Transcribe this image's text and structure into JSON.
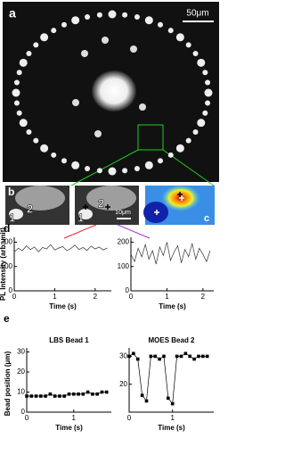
{
  "figure": {
    "panel_a": "a",
    "scale_a": "50μm",
    "panel_b": "b",
    "bead_1": "1",
    "bead_2": "2",
    "bead_1b": "1",
    "bead_2b": "2",
    "scale_b": "10μm",
    "panel_c": "c",
    "panel_d": "d",
    "panel_e": "e",
    "d_ylabel": "PL Intensity (arb.unit)",
    "e_ylabel": "Bead position (μm)"
  },
  "chart_data": [
    {
      "type": "line",
      "xlabel": "Time (s)",
      "color": "#333",
      "markers": false,
      "xlim": [
        0,
        2.4
      ],
      "ylim": [
        0,
        220
      ],
      "xticks": [
        0,
        1,
        2
      ],
      "yticks": [
        0,
        100,
        200
      ],
      "x": [
        0,
        0.1,
        0.2,
        0.3,
        0.4,
        0.5,
        0.6,
        0.7,
        0.8,
        0.9,
        1.0,
        1.1,
        1.2,
        1.3,
        1.4,
        1.5,
        1.6,
        1.7,
        1.8,
        1.9,
        2.0,
        2.1,
        2.2,
        2.3
      ],
      "values": [
        160,
        175,
        165,
        185,
        170,
        180,
        160,
        178,
        172,
        190,
        168,
        176,
        182,
        165,
        174,
        188,
        170,
        178,
        166,
        184,
        172,
        180,
        168,
        176
      ]
    },
    {
      "type": "line",
      "xlabel": "Time (s)",
      "color": "#333",
      "markers": false,
      "xlim": [
        0,
        2.3
      ],
      "ylim": [
        0,
        220
      ],
      "xticks": [
        0,
        1,
        2
      ],
      "yticks": [
        0,
        100,
        200
      ],
      "x": [
        0,
        0.1,
        0.2,
        0.3,
        0.4,
        0.5,
        0.6,
        0.7,
        0.8,
        0.9,
        1.0,
        1.1,
        1.2,
        1.3,
        1.4,
        1.5,
        1.6,
        1.7,
        1.8,
        1.9,
        2.0,
        2.1,
        2.2
      ],
      "values": [
        150,
        120,
        175,
        140,
        190,
        130,
        165,
        110,
        180,
        145,
        200,
        125,
        160,
        185,
        115,
        170,
        140,
        195,
        130,
        175,
        150,
        120,
        165
      ]
    },
    {
      "type": "line",
      "title": "LBS Bead 1",
      "xlabel": "Time (s)",
      "color": "#000",
      "markers": true,
      "xlim": [
        0,
        1.8
      ],
      "ylim": [
        0,
        32
      ],
      "xticks": [
        0,
        1
      ],
      "yticks": [
        0,
        10,
        20,
        30
      ],
      "x": [
        0,
        0.1,
        0.2,
        0.3,
        0.4,
        0.5,
        0.6,
        0.7,
        0.8,
        0.9,
        1.0,
        1.1,
        1.2,
        1.3,
        1.4,
        1.5,
        1.6,
        1.7
      ],
      "values": [
        8,
        8,
        8,
        8,
        8,
        9,
        8,
        8,
        8,
        9,
        9,
        9,
        9,
        10,
        9,
        9,
        10,
        10
      ]
    },
    {
      "type": "line",
      "title": "MOES Bead 2",
      "xlabel": "Time (s)",
      "color": "#000",
      "markers": true,
      "xlim": [
        0,
        1.95
      ],
      "ylim": [
        10,
        33
      ],
      "xticks": [
        0,
        1
      ],
      "yticks": [
        20,
        30
      ],
      "x": [
        0,
        0.1,
        0.2,
        0.3,
        0.4,
        0.5,
        0.6,
        0.7,
        0.8,
        0.9,
        1.0,
        1.1,
        1.2,
        1.3,
        1.4,
        1.5,
        1.6,
        1.7,
        1.8
      ],
      "values": [
        30,
        31,
        29,
        16,
        14,
        30,
        30,
        29,
        30,
        15,
        13,
        30,
        30,
        31,
        30,
        29,
        30,
        30,
        30
      ]
    }
  ]
}
